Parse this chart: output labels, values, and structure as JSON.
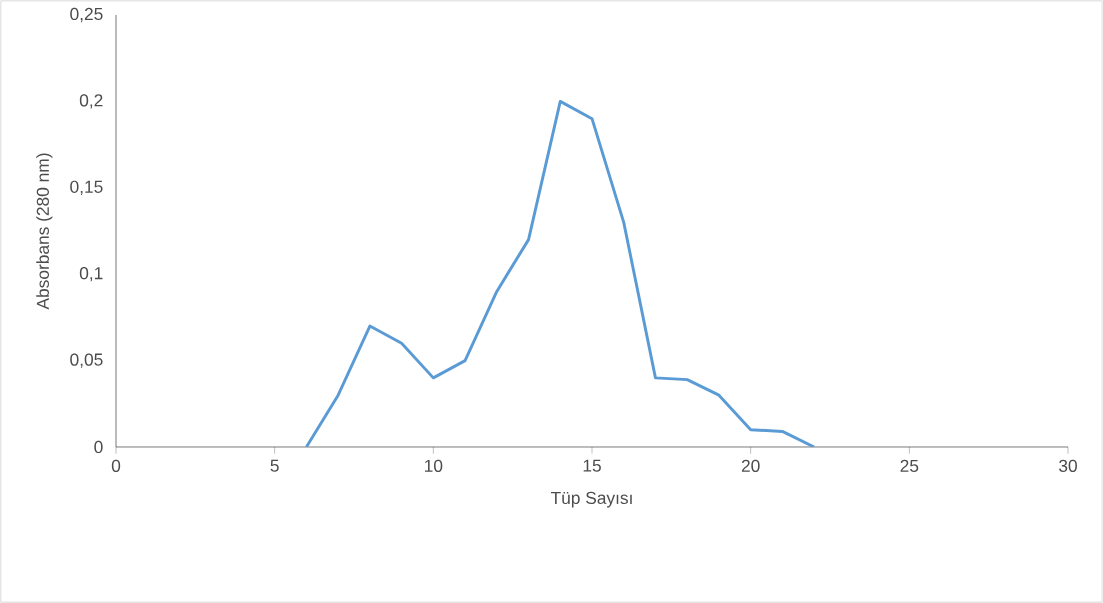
{
  "chart_data": {
    "type": "line",
    "xlabel": "Tüp Sayısı",
    "ylabel": "Absorbans (280 nm)",
    "x": [
      6,
      7,
      8,
      9,
      10,
      11,
      12,
      13,
      14,
      15,
      16,
      17,
      18,
      19,
      20,
      21,
      22
    ],
    "values": [
      0,
      0.03,
      0.07,
      0.06,
      0.04,
      0.05,
      0.09,
      0.12,
      0.2,
      0.19,
      0.13,
      0.04,
      0.039,
      0.03,
      0.01,
      0.009,
      0
    ],
    "color": "#5b9bd5",
    "xlim": [
      0,
      30
    ],
    "xticks": [
      0,
      5,
      10,
      15,
      20,
      25,
      30
    ],
    "ylim": [
      0,
      0.25
    ],
    "yticks": [
      0,
      {
        "value": 0.05,
        "label": "0,05"
      },
      {
        "value": 0.1,
        "label": "0,1"
      },
      {
        "value": 0.15,
        "label": "0,15"
      },
      {
        "value": 0.2,
        "label": "0,2"
      },
      {
        "value": 0.25,
        "label": "0,25"
      }
    ],
    "grid": false,
    "marker": "none",
    "line_style": "solid"
  }
}
